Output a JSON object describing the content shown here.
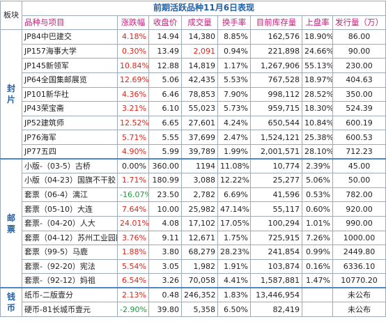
{
  "title": "前期活跃品种11月6日表现",
  "header": {
    "section": "板块",
    "columns": [
      "品种与项目",
      "涨跌幅",
      "收盘价",
      "成交量",
      "换手率",
      "目前库存量",
      "上盘率",
      "发行量（万）"
    ]
  },
  "sections": [
    {
      "label": "封\n片",
      "rows": [
        {
          "name": "JP84中巴建交",
          "change": "4.18%",
          "change_color": "red",
          "close": "14.94",
          "volume": "14,380",
          "volume_color": "",
          "turnover": "8.85%",
          "stock": "162,576",
          "listing": "18.90%",
          "issue": "86.00"
        },
        {
          "name": "JP157海事大学",
          "change": "0.30%",
          "change_color": "red",
          "close": "13.49",
          "volume": "2,091",
          "volume_color": "red",
          "turnover": "0.94%",
          "stock": "221,898",
          "listing": "24.66%",
          "issue": "90.00"
        },
        {
          "name": "JP145新领军",
          "change": "10.84%",
          "change_color": "red",
          "close": "12.88",
          "volume": "14,819",
          "volume_color": "",
          "turnover": "1.17%",
          "stock": "1,267,906",
          "listing": "55.13%",
          "issue": "230.00"
        },
        {
          "name": "JP64全国集邮展览",
          "change": "12.69%",
          "change_color": "red",
          "close": "5.06",
          "volume": "42,435",
          "volume_color": "",
          "turnover": "5.53%",
          "stock": "767,528",
          "listing": "18.97%",
          "issue": "404.63"
        },
        {
          "name": "JP101新华社",
          "change": "4.36%",
          "change_color": "red",
          "close": "6.46",
          "volume": "78,853",
          "volume_color": "",
          "turnover": "7.90%",
          "stock": "998,112",
          "listing": "28.52%",
          "issue": "350.00"
        },
        {
          "name": "JP43荣宝斋",
          "change": "3.21%",
          "change_color": "red",
          "close": "6.10",
          "volume": "55,023",
          "volume_color": "",
          "turnover": "5.73%",
          "stock": "959,715",
          "listing": "18.30%",
          "issue": "524.39"
        },
        {
          "name": "JP52建筑师",
          "change": "12.52%",
          "change_color": "red",
          "close": "6.65",
          "volume": "27,601",
          "volume_color": "",
          "turnover": "4.24%",
          "stock": "650,544",
          "listing": "10.84%",
          "issue": "600.19"
        },
        {
          "name": "JP76海军",
          "change": "5.71%",
          "change_color": "red",
          "close": "5.55",
          "volume": "37,699",
          "volume_color": "",
          "turnover": "2.47%",
          "stock": "1,524,121",
          "listing": "25.38%",
          "issue": "600.53"
        },
        {
          "name": "JP77五四",
          "change": "4.90%",
          "change_color": "red",
          "close": "5.99",
          "volume": "39,789",
          "volume_color": "",
          "turnover": "1.99%",
          "stock": "2,001,571",
          "listing": "28.10%",
          "issue": "712.23"
        }
      ]
    },
    {
      "label": "邮\n票",
      "rows": [
        {
          "name": "小版-（03-5）古桥",
          "change": "0.00%",
          "change_color": "",
          "close": "360.00",
          "volume": "1194",
          "volume_color": "",
          "turnover": "11.08%",
          "stock": "10,774",
          "listing": "2.39%",
          "issue": "45.00"
        },
        {
          "name": "小版（04-23）国旗不干胶",
          "change": "1.71%",
          "change_color": "red",
          "close": "180.99",
          "volume": "3,088",
          "volume_color": "",
          "turnover": "12.22%",
          "stock": "25,277",
          "listing": "5.06%",
          "issue": "50.00"
        },
        {
          "name": "套票（06-4）漓江",
          "change": "-16.07%",
          "change_color": "green",
          "close": "23.50",
          "volume": "2,782",
          "volume_color": "",
          "turnover": "6.69%",
          "stock": "41,596",
          "listing": "0.53%",
          "issue": "782.00"
        },
        {
          "name": "套票（05-10）大连",
          "change": "7.64%",
          "change_color": "red",
          "close": "10.00",
          "volume": "25,982",
          "volume_color": "",
          "turnover": "47.14%",
          "stock": "55,117",
          "listing": "0.60%",
          "issue": "920.00"
        },
        {
          "name": "套票-（04-20）人大",
          "change": "24.01%",
          "change_color": "red",
          "close": "4.08",
          "volume": "17,102",
          "volume_color": "",
          "turnover": "17.05%",
          "stock": "100,294",
          "listing": "1.01%",
          "issue": "990.00"
        },
        {
          "name": "套票（04-12）苏州工业园区",
          "change": "3.76%",
          "change_color": "red",
          "close": "9.11",
          "volume": "12,671",
          "volume_color": "",
          "turnover": "1.75%",
          "stock": "725,915",
          "listing": "7.26%",
          "issue": "1000.00"
        },
        {
          "name": "套票（99-5）马鹿",
          "change": "1.88%",
          "change_color": "red",
          "close": "3.80",
          "volume": "68,279",
          "volume_color": "",
          "turnover": "28.23%",
          "stock": "241,854",
          "listing": "0.99%",
          "issue": "2449.80"
        },
        {
          "name": "套票-（92-20）宪法",
          "change": "5.54%",
          "change_color": "red",
          "close": "3.05",
          "volume": "1,982",
          "volume_color": "",
          "turnover": "1.91%",
          "stock": "103,874",
          "listing": "0.16%",
          "issue": "6336.10"
        },
        {
          "name": "套票-（92-12）妈祖",
          "change": "6.54%",
          "change_color": "red",
          "close": "3.26",
          "volume": "70,058",
          "volume_color": "",
          "turnover": "4.41%",
          "stock": "1,587,881",
          "listing": "1.47%",
          "issue": "10770.20"
        }
      ]
    },
    {
      "label": "钱\n币",
      "rows": [
        {
          "name": "纸币-二版壹分",
          "change": "2.13%",
          "change_color": "red",
          "close": "0.48",
          "volume": "246,352",
          "volume_color": "",
          "turnover": "1.83%",
          "stock": "13,446,954",
          "listing": "",
          "issue": "未公布"
        },
        {
          "name": "硬币-81长城币壹元",
          "change": "-2.90%",
          "change_color": "green",
          "close": "39.80",
          "volume": "5,358",
          "volume_color": "",
          "turnover": "6.50%",
          "stock": "82,419",
          "listing": "",
          "issue": "未公布"
        }
      ]
    }
  ],
  "colors": {
    "red": "#e0261b",
    "green": "#1a9b3a",
    "title": "#1f5fa8",
    "header": "#c0227a"
  }
}
